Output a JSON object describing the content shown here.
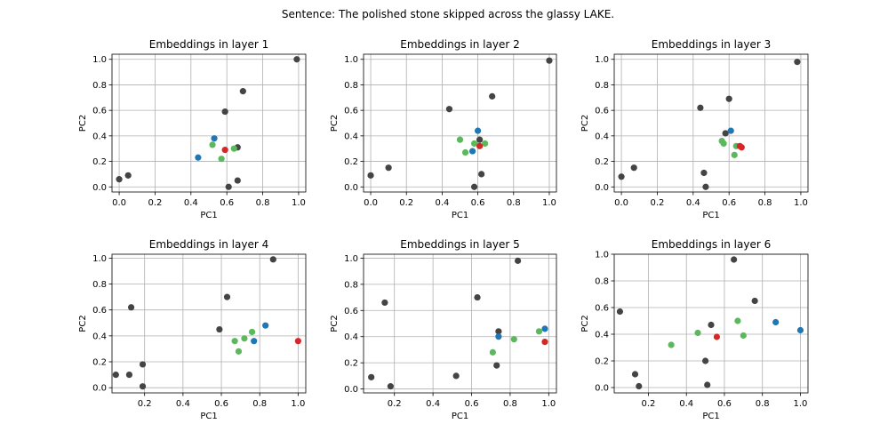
{
  "suptitle": "Sentence: The polished stone skipped across the glassy LAKE.",
  "colors": {
    "gray": "#444444",
    "blue": "#1f77b4",
    "green": "#5cb85c",
    "red": "#d62728"
  },
  "chart_data": [
    {
      "type": "scatter",
      "title": "Embeddings in layer 1",
      "xlabel": "PC1",
      "ylabel": "PC2",
      "xlim": [
        -0.04,
        1.04
      ],
      "ylim": [
        -0.04,
        1.04
      ],
      "xticks": [
        0.0,
        0.2,
        0.4,
        0.6,
        0.8,
        1.0
      ],
      "yticks": [
        0.0,
        0.2,
        0.4,
        0.6,
        0.8,
        1.0
      ],
      "xtick_labels": [
        "0.0",
        "0.2",
        "0.4",
        "0.6",
        "0.8",
        "1.0"
      ],
      "ytick_labels": [
        "0.0",
        "0.2",
        "0.4",
        "0.6",
        "0.8",
        "1.0"
      ],
      "grid": true,
      "points": [
        {
          "x": 0.0,
          "y": 0.06,
          "c": "gray"
        },
        {
          "x": 0.05,
          "y": 0.09,
          "c": "gray"
        },
        {
          "x": 0.99,
          "y": 1.0,
          "c": "gray"
        },
        {
          "x": 0.69,
          "y": 0.75,
          "c": "gray"
        },
        {
          "x": 0.59,
          "y": 0.59,
          "c": "gray"
        },
        {
          "x": 0.66,
          "y": 0.31,
          "c": "gray"
        },
        {
          "x": 0.66,
          "y": 0.05,
          "c": "gray"
        },
        {
          "x": 0.61,
          "y": 0.0,
          "c": "gray"
        },
        {
          "x": 0.44,
          "y": 0.23,
          "c": "blue"
        },
        {
          "x": 0.53,
          "y": 0.38,
          "c": "blue"
        },
        {
          "x": 0.52,
          "y": 0.33,
          "c": "green"
        },
        {
          "x": 0.57,
          "y": 0.22,
          "c": "green"
        },
        {
          "x": 0.64,
          "y": 0.3,
          "c": "green"
        },
        {
          "x": 0.59,
          "y": 0.29,
          "c": "red"
        }
      ]
    },
    {
      "type": "scatter",
      "title": "Embeddings in layer 2",
      "xlabel": "PC1",
      "ylabel": "PC2",
      "xlim": [
        -0.04,
        1.04
      ],
      "ylim": [
        -0.04,
        1.04
      ],
      "xticks": [
        0.0,
        0.2,
        0.4,
        0.6,
        0.8,
        1.0
      ],
      "yticks": [
        0.0,
        0.2,
        0.4,
        0.6,
        0.8,
        1.0
      ],
      "xtick_labels": [
        "0.0",
        "0.2",
        "0.4",
        "0.6",
        "0.8",
        "1.0"
      ],
      "ytick_labels": [
        "0.0",
        "0.2",
        "0.4",
        "0.6",
        "0.8",
        "1.0"
      ],
      "grid": true,
      "points": [
        {
          "x": 0.0,
          "y": 0.09,
          "c": "gray"
        },
        {
          "x": 0.1,
          "y": 0.15,
          "c": "gray"
        },
        {
          "x": 1.0,
          "y": 0.99,
          "c": "gray"
        },
        {
          "x": 0.68,
          "y": 0.71,
          "c": "gray"
        },
        {
          "x": 0.44,
          "y": 0.61,
          "c": "gray"
        },
        {
          "x": 0.61,
          "y": 0.37,
          "c": "gray"
        },
        {
          "x": 0.62,
          "y": 0.1,
          "c": "gray"
        },
        {
          "x": 0.58,
          "y": 0.0,
          "c": "gray"
        },
        {
          "x": 0.6,
          "y": 0.44,
          "c": "blue"
        },
        {
          "x": 0.57,
          "y": 0.28,
          "c": "blue"
        },
        {
          "x": 0.5,
          "y": 0.37,
          "c": "green"
        },
        {
          "x": 0.53,
          "y": 0.27,
          "c": "green"
        },
        {
          "x": 0.58,
          "y": 0.34,
          "c": "green"
        },
        {
          "x": 0.64,
          "y": 0.34,
          "c": "green"
        },
        {
          "x": 0.61,
          "y": 0.32,
          "c": "red"
        }
      ]
    },
    {
      "type": "scatter",
      "title": "Embeddings in layer 3",
      "xlabel": "PC1",
      "ylabel": "PC2",
      "xlim": [
        -0.04,
        1.04
      ],
      "ylim": [
        -0.04,
        1.04
      ],
      "xticks": [
        0.0,
        0.2,
        0.4,
        0.6,
        0.8,
        1.0
      ],
      "yticks": [
        0.0,
        0.2,
        0.4,
        0.6,
        0.8,
        1.0
      ],
      "xtick_labels": [
        "0.0",
        "0.2",
        "0.4",
        "0.6",
        "0.8",
        "1.0"
      ],
      "ytick_labels": [
        "0.0",
        "0.2",
        "0.4",
        "0.6",
        "0.8",
        "1.0"
      ],
      "grid": true,
      "points": [
        {
          "x": 0.0,
          "y": 0.08,
          "c": "gray"
        },
        {
          "x": 0.07,
          "y": 0.15,
          "c": "gray"
        },
        {
          "x": 0.98,
          "y": 0.98,
          "c": "gray"
        },
        {
          "x": 0.6,
          "y": 0.69,
          "c": "gray"
        },
        {
          "x": 0.44,
          "y": 0.62,
          "c": "gray"
        },
        {
          "x": 0.58,
          "y": 0.42,
          "c": "gray"
        },
        {
          "x": 0.46,
          "y": 0.11,
          "c": "gray"
        },
        {
          "x": 0.47,
          "y": 0.0,
          "c": "gray"
        },
        {
          "x": 0.61,
          "y": 0.44,
          "c": "blue"
        },
        {
          "x": 0.56,
          "y": 0.36,
          "c": "green"
        },
        {
          "x": 0.57,
          "y": 0.34,
          "c": "green"
        },
        {
          "x": 0.63,
          "y": 0.25,
          "c": "green"
        },
        {
          "x": 0.64,
          "y": 0.32,
          "c": "green"
        },
        {
          "x": 0.66,
          "y": 0.32,
          "c": "red"
        },
        {
          "x": 0.67,
          "y": 0.31,
          "c": "red"
        }
      ]
    },
    {
      "type": "scatter",
      "title": "Embeddings in layer 4",
      "xlabel": "PC1",
      "ylabel": "PC2",
      "xlim": [
        0.03,
        1.04
      ],
      "ylim": [
        -0.04,
        1.03
      ],
      "xticks": [
        0.2,
        0.4,
        0.6,
        0.8,
        1.0
      ],
      "yticks": [
        0.0,
        0.2,
        0.4,
        0.6,
        0.8,
        1.0
      ],
      "xtick_labels": [
        "0.2",
        "0.4",
        "0.6",
        "0.8",
        "1.0"
      ],
      "ytick_labels": [
        "0.0",
        "0.2",
        "0.4",
        "0.6",
        "0.8",
        "1.0"
      ],
      "grid": true,
      "points": [
        {
          "x": 0.05,
          "y": 0.1,
          "c": "gray"
        },
        {
          "x": 0.12,
          "y": 0.1,
          "c": "gray"
        },
        {
          "x": 0.13,
          "y": 0.62,
          "c": "gray"
        },
        {
          "x": 0.19,
          "y": 0.18,
          "c": "gray"
        },
        {
          "x": 0.19,
          "y": 0.01,
          "c": "gray"
        },
        {
          "x": 0.59,
          "y": 0.45,
          "c": "gray"
        },
        {
          "x": 0.63,
          "y": 0.7,
          "c": "gray"
        },
        {
          "x": 0.87,
          "y": 0.99,
          "c": "gray"
        },
        {
          "x": 0.83,
          "y": 0.48,
          "c": "blue"
        },
        {
          "x": 0.77,
          "y": 0.36,
          "c": "blue"
        },
        {
          "x": 0.67,
          "y": 0.36,
          "c": "green"
        },
        {
          "x": 0.69,
          "y": 0.28,
          "c": "green"
        },
        {
          "x": 0.72,
          "y": 0.38,
          "c": "green"
        },
        {
          "x": 0.76,
          "y": 0.43,
          "c": "green"
        },
        {
          "x": 1.0,
          "y": 0.36,
          "c": "red"
        }
      ]
    },
    {
      "type": "scatter",
      "title": "Embeddings in layer 5",
      "xlabel": "PC1",
      "ylabel": "PC2",
      "xlim": [
        0.04,
        1.04
      ],
      "ylim": [
        -0.03,
        1.03
      ],
      "xticks": [
        0.2,
        0.4,
        0.6,
        0.8,
        1.0
      ],
      "yticks": [
        0.0,
        0.2,
        0.4,
        0.6,
        0.8,
        1.0
      ],
      "xtick_labels": [
        "0.2",
        "0.4",
        "0.6",
        "0.8",
        "1.0"
      ],
      "ytick_labels": [
        "0.0",
        "0.2",
        "0.4",
        "0.6",
        "0.8",
        "1.0"
      ],
      "grid": true,
      "points": [
        {
          "x": 0.08,
          "y": 0.09,
          "c": "gray"
        },
        {
          "x": 0.15,
          "y": 0.66,
          "c": "gray"
        },
        {
          "x": 0.18,
          "y": 0.02,
          "c": "gray"
        },
        {
          "x": 0.52,
          "y": 0.1,
          "c": "gray"
        },
        {
          "x": 0.63,
          "y": 0.7,
          "c": "gray"
        },
        {
          "x": 0.73,
          "y": 0.18,
          "c": "gray"
        },
        {
          "x": 0.74,
          "y": 0.44,
          "c": "gray"
        },
        {
          "x": 0.84,
          "y": 0.98,
          "c": "gray"
        },
        {
          "x": 0.74,
          "y": 0.4,
          "c": "blue"
        },
        {
          "x": 0.98,
          "y": 0.46,
          "c": "blue"
        },
        {
          "x": 0.71,
          "y": 0.28,
          "c": "green"
        },
        {
          "x": 0.82,
          "y": 0.38,
          "c": "green"
        },
        {
          "x": 0.95,
          "y": 0.44,
          "c": "green"
        },
        {
          "x": 0.98,
          "y": 0.36,
          "c": "red"
        }
      ]
    },
    {
      "type": "scatter",
      "title": "Embeddings in layer 6",
      "xlabel": "PC1",
      "ylabel": "PC2",
      "xlim": [
        0.02,
        1.04
      ],
      "ylim": [
        -0.04,
        1.0
      ],
      "xticks": [
        0.2,
        0.4,
        0.6,
        0.8,
        1.0
      ],
      "yticks": [
        0.0,
        0.2,
        0.4,
        0.6,
        0.8,
        1.0
      ],
      "xtick_labels": [
        "0.2",
        "0.4",
        "0.6",
        "0.8",
        "1.0"
      ],
      "ytick_labels": [
        "0.0",
        "0.2",
        "0.4",
        "0.6",
        "0.8",
        "1.0"
      ],
      "grid": true,
      "points": [
        {
          "x": 0.05,
          "y": 0.57,
          "c": "gray"
        },
        {
          "x": 0.13,
          "y": 0.1,
          "c": "gray"
        },
        {
          "x": 0.15,
          "y": 0.01,
          "c": "gray"
        },
        {
          "x": 0.5,
          "y": 0.2,
          "c": "gray"
        },
        {
          "x": 0.51,
          "y": 0.02,
          "c": "gray"
        },
        {
          "x": 0.53,
          "y": 0.47,
          "c": "gray"
        },
        {
          "x": 0.65,
          "y": 0.96,
          "c": "gray"
        },
        {
          "x": 0.76,
          "y": 0.65,
          "c": "gray"
        },
        {
          "x": 0.87,
          "y": 0.49,
          "c": "blue"
        },
        {
          "x": 1.0,
          "y": 0.43,
          "c": "blue"
        },
        {
          "x": 0.32,
          "y": 0.32,
          "c": "green"
        },
        {
          "x": 0.46,
          "y": 0.41,
          "c": "green"
        },
        {
          "x": 0.67,
          "y": 0.5,
          "c": "green"
        },
        {
          "x": 0.7,
          "y": 0.39,
          "c": "green"
        },
        {
          "x": 0.56,
          "y": 0.38,
          "c": "red"
        }
      ]
    }
  ]
}
